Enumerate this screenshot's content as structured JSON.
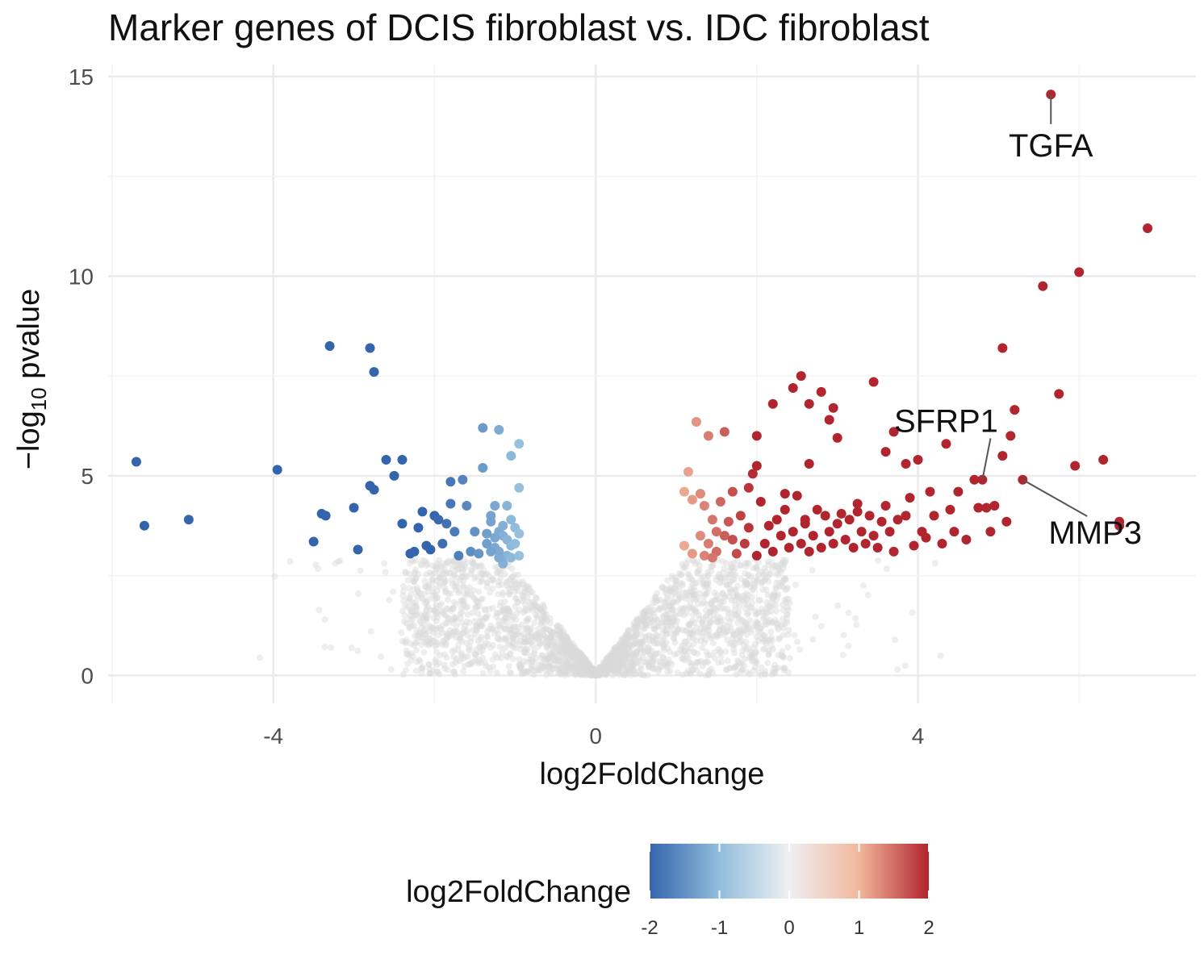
{
  "chart_data": {
    "type": "scatter",
    "title": "Marker genes of DCIS fibroblast vs. IDC fibroblast",
    "xlabel": "log2FoldChange",
    "ylabel": {
      "prefix": "−log",
      "sub": "10",
      "suffix": " pvalue"
    },
    "xlim": [
      -6.05,
      7.45
    ],
    "ylim": [
      -0.7,
      15.3
    ],
    "x_ticks": [
      {
        "value": -4,
        "label": "-4"
      },
      {
        "value": 0,
        "label": "0"
      },
      {
        "value": 4,
        "label": "4"
      }
    ],
    "y_ticks": [
      {
        "value": 0,
        "label": "0"
      },
      {
        "value": 5,
        "label": "5"
      },
      {
        "value": 10,
        "label": "10"
      },
      {
        "value": 15,
        "label": "15"
      }
    ],
    "grid": true,
    "legend": {
      "title": "log2FoldChange",
      "placement": "bottom",
      "range": [
        -2,
        2
      ],
      "ticks": [
        {
          "value": -2,
          "label": "-2"
        },
        {
          "value": -1,
          "label": "-1"
        },
        {
          "value": 0,
          "label": "0"
        },
        {
          "value": 1,
          "label": "1"
        },
        {
          "value": 2,
          "label": "2"
        }
      ],
      "colors": [
        "#3465ac",
        "#92bddc",
        "#eef0f2",
        "#f2b79d",
        "#b1252e"
      ]
    },
    "nonsignificant_color": "#d9d9d9",
    "significant_points": [
      [
        -5.7,
        5.35
      ],
      [
        -5.6,
        3.75
      ],
      [
        -5.05,
        3.9
      ],
      [
        -3.95,
        5.15
      ],
      [
        -3.3,
        8.25
      ],
      [
        -2.8,
        8.2
      ],
      [
        -2.75,
        7.6
      ],
      [
        -3.5,
        3.35
      ],
      [
        -3.4,
        4.05
      ],
      [
        -3.35,
        4.0
      ],
      [
        -3.0,
        4.2
      ],
      [
        -2.95,
        3.15
      ],
      [
        -2.8,
        4.75
      ],
      [
        -2.75,
        4.65
      ],
      [
        -2.6,
        5.4
      ],
      [
        -2.5,
        5.0
      ],
      [
        -2.4,
        5.4
      ],
      [
        -2.4,
        3.8
      ],
      [
        -2.3,
        3.05
      ],
      [
        -2.25,
        3.1
      ],
      [
        -2.2,
        3.7
      ],
      [
        -2.15,
        4.1
      ],
      [
        -2.1,
        3.25
      ],
      [
        -2.05,
        3.15
      ],
      [
        -2.0,
        4.0
      ],
      [
        -1.95,
        3.9
      ],
      [
        -1.9,
        3.3
      ],
      [
        -1.85,
        3.8
      ],
      [
        -1.8,
        4.85
      ],
      [
        -1.8,
        4.3
      ],
      [
        -1.75,
        3.6
      ],
      [
        -1.7,
        3.0
      ],
      [
        -1.65,
        4.9
      ],
      [
        -1.6,
        4.25
      ],
      [
        -1.55,
        3.1
      ],
      [
        -1.5,
        3.6
      ],
      [
        -1.45,
        3.05
      ],
      [
        -1.4,
        5.2
      ],
      [
        -1.35,
        3.3
      ],
      [
        -1.3,
        3.85
      ],
      [
        -1.25,
        3.2
      ],
      [
        -1.2,
        3.6
      ],
      [
        -1.15,
        3.5
      ],
      [
        -1.1,
        3.0
      ],
      [
        -1.1,
        3.4
      ],
      [
        -1.05,
        3.25
      ],
      [
        -1.0,
        3.7
      ],
      [
        -1.4,
        6.2
      ],
      [
        -1.2,
        6.15
      ],
      [
        -1.05,
        5.5
      ],
      [
        -0.95,
        5.8
      ],
      [
        -0.95,
        4.7
      ],
      [
        -1.3,
        4.0
      ],
      [
        -1.25,
        3.45
      ],
      [
        -1.2,
        3.1
      ],
      [
        -1.15,
        2.8
      ],
      [
        -1.1,
        4.25
      ],
      [
        -1.05,
        3.9
      ],
      [
        -1.0,
        3.3
      ],
      [
        -1.25,
        4.25
      ],
      [
        -1.3,
        3.1
      ],
      [
        -1.35,
        3.55
      ],
      [
        -1.2,
        2.95
      ],
      [
        -1.15,
        3.75
      ],
      [
        -1.05,
        2.95
      ],
      [
        -0.95,
        3.55
      ],
      [
        -0.95,
        3.0
      ],
      [
        1.1,
        3.25
      ],
      [
        1.1,
        4.6
      ],
      [
        1.15,
        5.1
      ],
      [
        1.2,
        3.05
      ],
      [
        1.25,
        6.35
      ],
      [
        1.3,
        3.5
      ],
      [
        1.35,
        4.25
      ],
      [
        1.4,
        3.3
      ],
      [
        1.45,
        3.9
      ],
      [
        1.5,
        3.1
      ],
      [
        1.55,
        4.35
      ],
      [
        1.6,
        3.5
      ],
      [
        1.65,
        3.85
      ],
      [
        1.7,
        4.6
      ],
      [
        1.75,
        3.05
      ],
      [
        1.8,
        4.0
      ],
      [
        1.85,
        3.3
      ],
      [
        1.4,
        6.0
      ],
      [
        1.6,
        6.1
      ],
      [
        1.3,
        4.55
      ],
      [
        1.2,
        4.4
      ],
      [
        1.5,
        3.6
      ],
      [
        1.7,
        3.4
      ],
      [
        1.9,
        3.7
      ],
      [
        1.35,
        3.0
      ],
      [
        1.45,
        2.95
      ],
      [
        2.0,
        3.0
      ],
      [
        2.05,
        4.35
      ],
      [
        2.1,
        3.3
      ],
      [
        2.2,
        3.1
      ],
      [
        2.25,
        3.9
      ],
      [
        2.3,
        3.5
      ],
      [
        2.35,
        4.15
      ],
      [
        2.4,
        3.2
      ],
      [
        2.45,
        3.6
      ],
      [
        2.5,
        4.5
      ],
      [
        2.55,
        3.3
      ],
      [
        2.6,
        3.8
      ],
      [
        2.65,
        3.1
      ],
      [
        2.7,
        3.5
      ],
      [
        2.75,
        4.15
      ],
      [
        2.8,
        3.2
      ],
      [
        2.85,
        4.0
      ],
      [
        2.9,
        3.6
      ],
      [
        2.95,
        3.3
      ],
      [
        3.0,
        3.8
      ],
      [
        3.05,
        4.05
      ],
      [
        3.1,
        3.4
      ],
      [
        3.15,
        3.9
      ],
      [
        3.2,
        3.2
      ],
      [
        3.25,
        4.1
      ],
      [
        3.3,
        3.6
      ],
      [
        3.35,
        3.3
      ],
      [
        3.4,
        4.0
      ],
      [
        3.45,
        3.5
      ],
      [
        3.5,
        3.2
      ],
      [
        3.55,
        3.85
      ],
      [
        3.6,
        4.25
      ],
      [
        3.65,
        3.6
      ],
      [
        3.7,
        3.1
      ],
      [
        3.75,
        3.9
      ],
      [
        3.85,
        4.0
      ],
      [
        3.95,
        3.25
      ],
      [
        4.05,
        3.6
      ],
      [
        4.15,
        4.6
      ],
      [
        4.2,
        4.0
      ],
      [
        4.3,
        3.3
      ],
      [
        4.4,
        4.15
      ],
      [
        4.45,
        3.6
      ],
      [
        4.5,
        4.6
      ],
      [
        4.6,
        3.4
      ],
      [
        4.7,
        4.9
      ],
      [
        4.75,
        4.2
      ],
      [
        4.85,
        4.2
      ],
      [
        4.9,
        3.6
      ],
      [
        4.95,
        4.25
      ],
      [
        5.1,
        3.85
      ],
      [
        5.3,
        4.9
      ],
      [
        1.9,
        4.7
      ],
      [
        1.95,
        5.05
      ],
      [
        2.0,
        5.25
      ],
      [
        2.0,
        6.0
      ],
      [
        2.2,
        6.8
      ],
      [
        2.45,
        7.2
      ],
      [
        2.55,
        7.5
      ],
      [
        2.65,
        6.8
      ],
      [
        2.8,
        7.1
      ],
      [
        2.9,
        6.4
      ],
      [
        2.95,
        6.7
      ],
      [
        2.65,
        5.3
      ],
      [
        3.0,
        5.95
      ],
      [
        3.45,
        7.35
      ],
      [
        3.6,
        5.6
      ],
      [
        3.7,
        6.1
      ],
      [
        3.85,
        5.3
      ],
      [
        4.0,
        5.4
      ],
      [
        4.35,
        5.8
      ],
      [
        4.8,
        4.9
      ],
      [
        5.05,
        5.5
      ],
      [
        5.15,
        6.0
      ],
      [
        5.2,
        6.65
      ],
      [
        5.05,
        8.2
      ],
      [
        5.55,
        9.75
      ],
      [
        5.65,
        14.55
      ],
      [
        5.75,
        7.05
      ],
      [
        5.95,
        5.25
      ],
      [
        6.0,
        10.1
      ],
      [
        6.3,
        5.4
      ],
      [
        6.5,
        3.85
      ],
      [
        6.5,
        3.75
      ],
      [
        6.85,
        11.2
      ],
      [
        2.35,
        4.55
      ],
      [
        3.25,
        4.3
      ],
      [
        3.9,
        4.45
      ],
      [
        4.1,
        3.45
      ],
      [
        2.15,
        3.75
      ],
      [
        2.6,
        3.9
      ]
    ],
    "annotations": [
      {
        "label": "TGFA",
        "x": 5.65,
        "y": 14.55,
        "text_x": 5.65,
        "text_y": 13.0
      },
      {
        "label": "SFRP1",
        "x": 4.8,
        "y": 4.9,
        "text_x": 4.35,
        "text_y": 6.1
      },
      {
        "label": "MMP3",
        "x": 5.3,
        "y": 4.9,
        "text_x": 6.2,
        "text_y": 3.3
      }
    ]
  }
}
